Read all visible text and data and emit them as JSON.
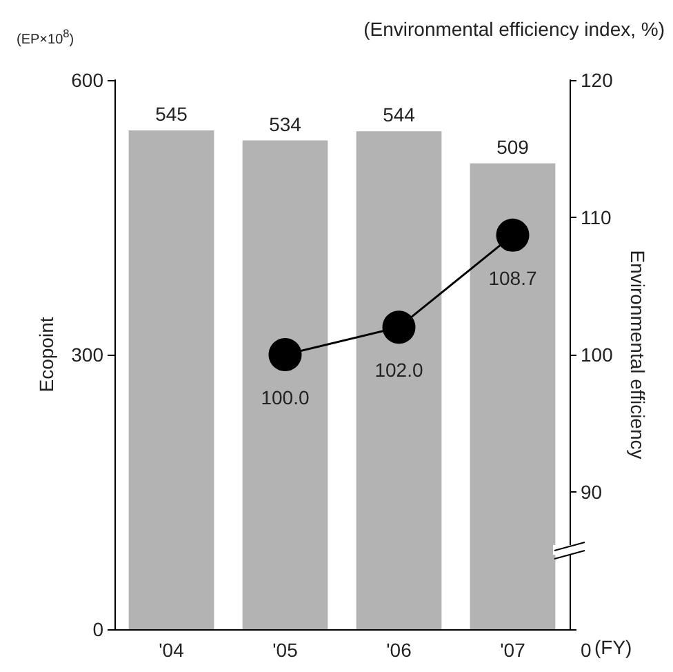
{
  "chart_data": {
    "type": "bar",
    "categories": [
      "'04",
      "'05",
      "'06",
      "'07"
    ],
    "xlabel": "(FY)",
    "ylabel": "Ecopoint",
    "y2label": "Environmental efficiency",
    "annotations": [
      "(EP×10$^{8}$)",
      "(Environmental efficiency index, %)",
      "0"
    ],
    "series": [
      {
        "type": "bar",
        "color": "#b3b3b3",
        "values": [
          545,
          534,
          544,
          509
        ]
      },
      {
        "type": "line",
        "axis": "y2",
        "color": "#000000",
        "values": [
          null,
          100.0,
          102.0,
          108.7
        ],
        "value_labels": [
          null,
          "100.0",
          "102.0",
          "108.7"
        ]
      }
    ],
    "ylim": [
      0,
      600
    ],
    "yticks": [
      0,
      300,
      600
    ],
    "y2lim": [
      80,
      120
    ],
    "y2ticks": [
      {
        "value": 80,
        "label": null
      },
      90,
      100,
      110,
      120
    ],
    "data_labels": true,
    "grid": false,
    "marker": "circle",
    "line_style": "solid"
  }
}
